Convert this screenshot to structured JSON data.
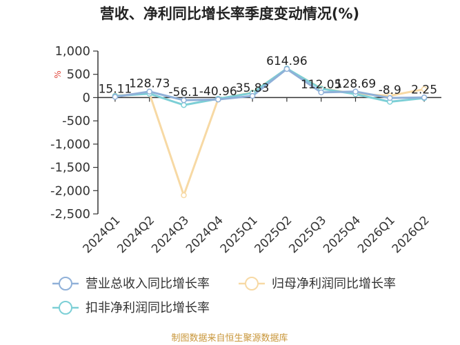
{
  "chart_data": {
    "type": "line",
    "title": "营收、净利同比增长率季度变动情况(%)",
    "ylabel": "%",
    "xlabel": "",
    "categories": [
      "2024Q1",
      "2024Q2",
      "2024Q3",
      "2024Q4",
      "2025Q1",
      "2025Q2",
      "2025Q3",
      "2025Q4",
      "2026Q1",
      "2026Q2"
    ],
    "ylim": [
      -2500,
      1000
    ],
    "yticks": [
      1000,
      500,
      0,
      -500,
      -1000,
      -1500,
      -2000,
      -2500
    ],
    "ytick_labels": [
      "1,000",
      "500",
      "0",
      "-500",
      "-1,000",
      "-1,500",
      "-2,000",
      "-2,500"
    ],
    "grid": false,
    "legend_position": "bottom",
    "series": [
      {
        "name": "营业总收入同比增长率",
        "color": "#8fb0d8",
        "values": [
          15.11,
          128.73,
          -56.1,
          -40.96,
          35.83,
          614.96,
          112.05,
          128.69,
          -8.9,
          2.25
        ],
        "labels": [
          "15.11",
          "128.73",
          "-56.1",
          "-40.96",
          "35.83",
          "614.96",
          "112.05",
          "128.69",
          "-8.9",
          "2.25"
        ]
      },
      {
        "name": "归母净利润同比增长率",
        "color": "#f7d9a4",
        "values": [
          40,
          90,
          -2100,
          -30,
          110,
          620,
          200,
          80,
          40,
          180
        ]
      },
      {
        "name": "扣非净利润同比增长率",
        "color": "#7ccfd6",
        "values": [
          35,
          85,
          -160,
          -25,
          100,
          625,
          190,
          75,
          -90,
          -10
        ]
      }
    ]
  },
  "source_note": "制图数据来自恒生聚源数据库"
}
